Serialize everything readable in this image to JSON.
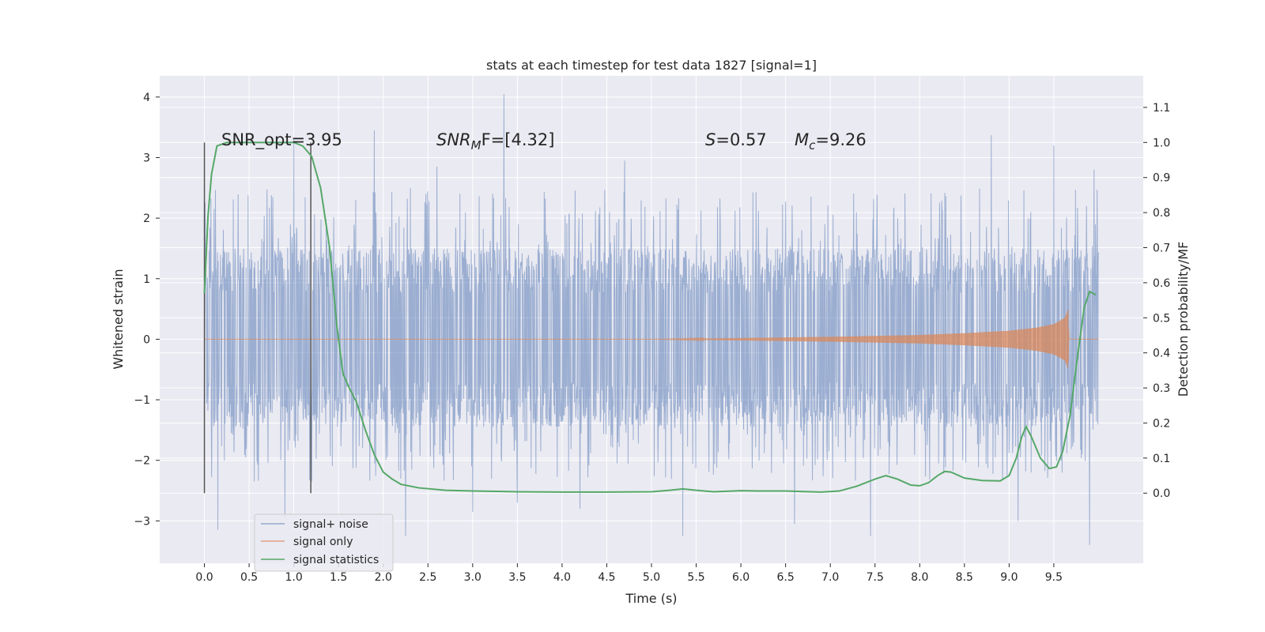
{
  "chart_data": {
    "type": "line",
    "title": "stats at each timestep for test data 1827 [signal=1]",
    "xlabel": "Time (s)",
    "ylabel_left": "Whitened strain",
    "ylabel_right": "Detection probability/MF",
    "xlim": [
      -0.5,
      10.5
    ],
    "ylim_left": [
      -3.7,
      4.35
    ],
    "ylim_right": [
      -0.2,
      1.19
    ],
    "x_ticks": [
      0.0,
      0.5,
      1.0,
      1.5,
      2.0,
      2.5,
      3.0,
      3.5,
      4.0,
      4.5,
      5.0,
      5.5,
      6.0,
      6.5,
      7.0,
      7.5,
      8.0,
      8.5,
      9.0,
      9.5
    ],
    "x_tick_labels": [
      "0.0",
      "0.5",
      "1.0",
      "1.5",
      "2.0",
      "2.5",
      "3.0",
      "3.5",
      "4.0",
      "4.5",
      "5.0",
      "5.5",
      "6.0",
      "6.5",
      "7.0",
      "7.5",
      "8.0",
      "8.5",
      "9.0",
      "9.5"
    ],
    "y_left_ticks": [
      4,
      3,
      2,
      1,
      0,
      -1,
      -2,
      -3
    ],
    "y_left_tick_labels": [
      "4",
      "3",
      "2",
      "1",
      "0",
      "−1",
      "−2",
      "−3"
    ],
    "y_right_ticks": [
      1.1,
      1.0,
      0.9,
      0.8,
      0.7,
      0.6,
      0.5,
      0.4,
      0.3,
      0.2,
      0.1,
      0.0
    ],
    "y_right_tick_labels": [
      "1.1",
      "1.0",
      "0.9",
      "0.8",
      "0.7",
      "0.6",
      "0.5",
      "0.4",
      "0.3",
      "0.2",
      "0.1",
      "0.0"
    ],
    "grid": true,
    "legend_position": "bottom-left",
    "annotations": {
      "snr_opt": "SNR_opt=3.95",
      "snr_mf_base": "SNR",
      "snr_mf_sub": "M",
      "snr_mf_rest": "F=[4.32]",
      "s_sym": "S",
      "s_val": "=0.57",
      "mc_base": "M",
      "mc_sub": "c",
      "mc_val": "=9.26"
    },
    "vlines_x": [
      0.0,
      1.19
    ],
    "series": [
      {
        "name": "signal+ noise",
        "axis": "left",
        "color": "#4c72b0",
        "x_range": [
          0.0,
          10.0
        ],
        "typical_band": [
          -1.45,
          1.5
        ],
        "extremes": [
          {
            "x": 0.15,
            "y": -3.15
          },
          {
            "x": 0.9,
            "y": -2.95
          },
          {
            "x": 1.0,
            "y": 3.32
          },
          {
            "x": 1.2,
            "y": -2.35
          },
          {
            "x": 1.9,
            "y": 3.45
          },
          {
            "x": 2.25,
            "y": -3.25
          },
          {
            "x": 2.6,
            "y": 2.85
          },
          {
            "x": 3.0,
            "y": -2.85
          },
          {
            "x": 3.35,
            "y": 4.05
          },
          {
            "x": 3.5,
            "y": -2.7
          },
          {
            "x": 4.2,
            "y": -2.8
          },
          {
            "x": 4.7,
            "y": 2.95
          },
          {
            "x": 5.35,
            "y": -3.25
          },
          {
            "x": 6.6,
            "y": -3.05
          },
          {
            "x": 7.45,
            "y": -3.25
          },
          {
            "x": 8.8,
            "y": 3.37
          },
          {
            "x": 9.1,
            "y": -3.0
          },
          {
            "x": 9.5,
            "y": 3.2
          },
          {
            "x": 9.9,
            "y": -3.4
          },
          {
            "x": 9.95,
            "y": 2.8
          }
        ]
      },
      {
        "name": "signal only",
        "axis": "left",
        "color": "#dd8452",
        "envelope": [
          {
            "x": 0.0,
            "y": 0.0
          },
          {
            "x": 5.0,
            "y": 0.0
          },
          {
            "x": 6.0,
            "y": 0.02
          },
          {
            "x": 7.0,
            "y": 0.04
          },
          {
            "x": 8.0,
            "y": 0.07
          },
          {
            "x": 8.5,
            "y": 0.1
          },
          {
            "x": 9.0,
            "y": 0.14
          },
          {
            "x": 9.3,
            "y": 0.19
          },
          {
            "x": 9.5,
            "y": 0.25
          },
          {
            "x": 9.62,
            "y": 0.35
          },
          {
            "x": 9.66,
            "y": 0.5
          },
          {
            "x": 9.67,
            "y": 0.0
          },
          {
            "x": 10.0,
            "y": 0.0
          }
        ]
      },
      {
        "name": "signal statistics",
        "axis": "right",
        "color": "#55a868",
        "points": [
          {
            "x": 0.0,
            "y": 0.57
          },
          {
            "x": 0.04,
            "y": 0.79
          },
          {
            "x": 0.08,
            "y": 0.91
          },
          {
            "x": 0.14,
            "y": 0.99
          },
          {
            "x": 0.25,
            "y": 1.0
          },
          {
            "x": 0.6,
            "y": 1.0
          },
          {
            "x": 1.0,
            "y": 1.0
          },
          {
            "x": 1.1,
            "y": 0.99
          },
          {
            "x": 1.2,
            "y": 0.96
          },
          {
            "x": 1.3,
            "y": 0.87
          },
          {
            "x": 1.4,
            "y": 0.7
          },
          {
            "x": 1.48,
            "y": 0.48
          },
          {
            "x": 1.55,
            "y": 0.34
          },
          {
            "x": 1.62,
            "y": 0.3
          },
          {
            "x": 1.7,
            "y": 0.26
          },
          {
            "x": 1.8,
            "y": 0.18
          },
          {
            "x": 1.9,
            "y": 0.11
          },
          {
            "x": 2.0,
            "y": 0.06
          },
          {
            "x": 2.1,
            "y": 0.04
          },
          {
            "x": 2.2,
            "y": 0.025
          },
          {
            "x": 2.4,
            "y": 0.015
          },
          {
            "x": 2.7,
            "y": 0.008
          },
          {
            "x": 3.0,
            "y": 0.006
          },
          {
            "x": 3.5,
            "y": 0.004
          },
          {
            "x": 4.0,
            "y": 0.003
          },
          {
            "x": 4.5,
            "y": 0.003
          },
          {
            "x": 5.0,
            "y": 0.004
          },
          {
            "x": 5.2,
            "y": 0.008
          },
          {
            "x": 5.35,
            "y": 0.012
          },
          {
            "x": 5.5,
            "y": 0.008
          },
          {
            "x": 5.7,
            "y": 0.004
          },
          {
            "x": 6.0,
            "y": 0.007
          },
          {
            "x": 6.2,
            "y": 0.006
          },
          {
            "x": 6.5,
            "y": 0.006
          },
          {
            "x": 6.9,
            "y": 0.003
          },
          {
            "x": 7.1,
            "y": 0.006
          },
          {
            "x": 7.3,
            "y": 0.02
          },
          {
            "x": 7.5,
            "y": 0.04
          },
          {
            "x": 7.62,
            "y": 0.05
          },
          {
            "x": 7.75,
            "y": 0.04
          },
          {
            "x": 7.9,
            "y": 0.023
          },
          {
            "x": 8.0,
            "y": 0.021
          },
          {
            "x": 8.1,
            "y": 0.03
          },
          {
            "x": 8.2,
            "y": 0.05
          },
          {
            "x": 8.28,
            "y": 0.062
          },
          {
            "x": 8.35,
            "y": 0.06
          },
          {
            "x": 8.5,
            "y": 0.043
          },
          {
            "x": 8.7,
            "y": 0.036
          },
          {
            "x": 8.9,
            "y": 0.035
          },
          {
            "x": 9.0,
            "y": 0.05
          },
          {
            "x": 9.08,
            "y": 0.1
          },
          {
            "x": 9.14,
            "y": 0.16
          },
          {
            "x": 9.19,
            "y": 0.19
          },
          {
            "x": 9.25,
            "y": 0.16
          },
          {
            "x": 9.35,
            "y": 0.1
          },
          {
            "x": 9.45,
            "y": 0.07
          },
          {
            "x": 9.53,
            "y": 0.075
          },
          {
            "x": 9.6,
            "y": 0.12
          },
          {
            "x": 9.68,
            "y": 0.22
          },
          {
            "x": 9.76,
            "y": 0.38
          },
          {
            "x": 9.84,
            "y": 0.53
          },
          {
            "x": 9.9,
            "y": 0.575
          },
          {
            "x": 9.97,
            "y": 0.565
          }
        ]
      }
    ]
  }
}
